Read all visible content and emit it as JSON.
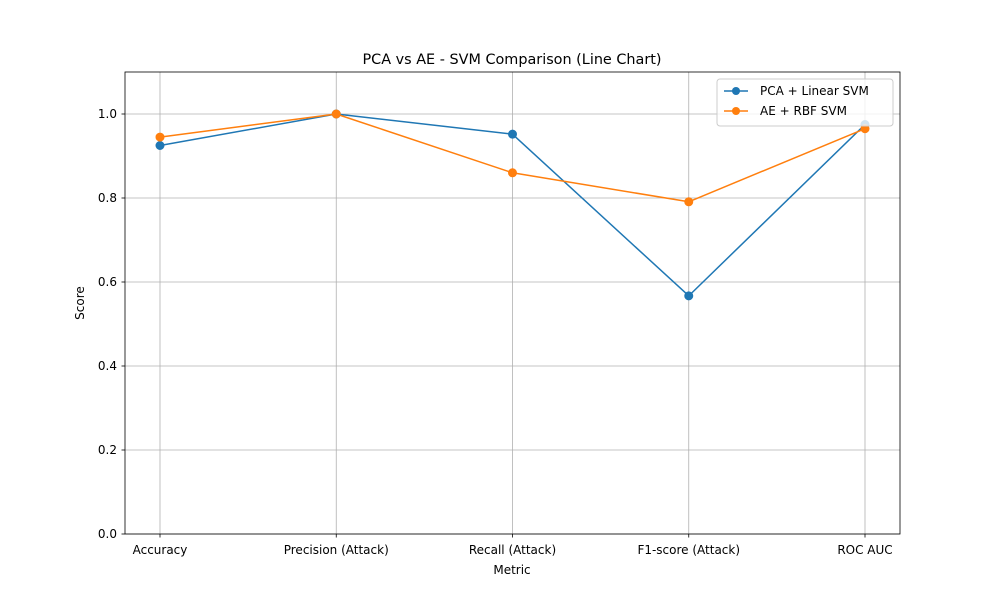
{
  "chart_data": {
    "type": "line",
    "title": "PCA vs AE - SVM Comparison (Line Chart)",
    "xlabel": "Metric",
    "ylabel": "Score",
    "categories": [
      "Accuracy",
      "Precision (Attack)",
      "Recall (Attack)",
      "F1-score (Attack)",
      "ROC AUC"
    ],
    "ylim": [
      0,
      1.1
    ],
    "yticks": [
      0.0,
      0.2,
      0.4,
      0.6,
      0.8,
      1.0
    ],
    "ytick_labels": [
      "0.0",
      "0.2",
      "0.4",
      "0.6",
      "0.8",
      "1.0"
    ],
    "grid": true,
    "legend_position": "top-right",
    "series": [
      {
        "name": "PCA + Linear SVM",
        "color": "#1f77b4",
        "marker": "circle",
        "values": [
          0.925,
          1.0,
          0.952,
          0.567,
          0.975
        ]
      },
      {
        "name": "AE + RBF SVM",
        "color": "#ff7f0e",
        "marker": "circle",
        "values": [
          0.945,
          1.0,
          0.86,
          0.791,
          0.965
        ]
      }
    ]
  }
}
